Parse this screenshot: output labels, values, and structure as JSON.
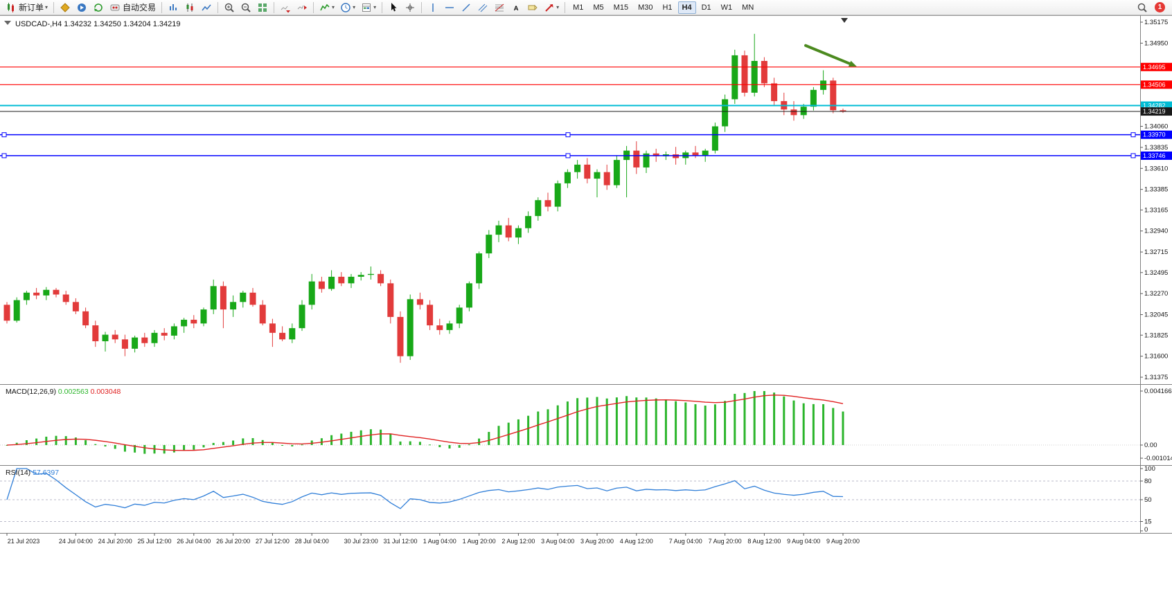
{
  "toolbar": {
    "items": [
      {
        "type": "button",
        "name": "new-order-button",
        "icon": "new-order-icon",
        "label": "新订单",
        "caret": true
      },
      {
        "type": "sep"
      },
      {
        "type": "button",
        "name": "metaeditor-button",
        "icon": "metaeditor-icon"
      },
      {
        "type": "button",
        "name": "community-button",
        "icon": "community-icon"
      },
      {
        "type": "button",
        "name": "refresh-button",
        "icon": "refresh-icon"
      },
      {
        "type": "button",
        "name": "algo-trading-button",
        "icon": "algo-trading-icon",
        "label": "自动交易"
      },
      {
        "type": "sep"
      },
      {
        "type": "button",
        "name": "bar-chart-button",
        "icon": "bar-chart-icon"
      },
      {
        "type": "button",
        "name": "candlestick-chart-button",
        "icon": "candlestick-chart-icon"
      },
      {
        "type": "button",
        "name": "line-chart-button",
        "icon": "line-chart-icon"
      },
      {
        "type": "sep"
      },
      {
        "type": "button",
        "name": "zoom-in-button",
        "icon": "zoom-in-icon"
      },
      {
        "type": "button",
        "name": "zoom-out-button",
        "icon": "zoom-out-icon"
      },
      {
        "type": "button",
        "name": "tile-windows-button",
        "icon": "tile-windows-icon"
      },
      {
        "type": "sep"
      },
      {
        "type": "button",
        "name": "auto-scroll-button",
        "icon": "auto-scroll-icon"
      },
      {
        "type": "button",
        "name": "chart-shift-button",
        "icon": "chart-shift-icon"
      },
      {
        "type": "sep"
      },
      {
        "type": "button",
        "name": "indicators-button",
        "icon": "indicators-icon",
        "caret": true
      },
      {
        "type": "button",
        "name": "timeframes-menu-button",
        "icon": "clock-icon",
        "caret": true
      },
      {
        "type": "button",
        "name": "templates-button",
        "icon": "template-icon",
        "caret": true
      },
      {
        "type": "sep"
      },
      {
        "type": "button",
        "name": "cursor-button",
        "icon": "cursor-icon"
      },
      {
        "type": "button",
        "name": "crosshair-button",
        "icon": "crosshair-icon"
      },
      {
        "type": "sep"
      },
      {
        "type": "button",
        "name": "vertical-line-button",
        "icon": "vertical-line-icon"
      },
      {
        "type": "button",
        "name": "horizontal-line-button",
        "icon": "horizontal-line-icon"
      },
      {
        "type": "button",
        "name": "trendline-button",
        "icon": "trendline-icon"
      },
      {
        "type": "button",
        "name": "channel-button",
        "icon": "channel-icon"
      },
      {
        "type": "button",
        "name": "fibonacci-button",
        "icon": "fibonacci-icon"
      },
      {
        "type": "button",
        "name": "text-button",
        "icon": "text-icon"
      },
      {
        "type": "button",
        "name": "label-button",
        "icon": "label-icon"
      },
      {
        "type": "button",
        "name": "shapes-button",
        "icon": "shapes-icon",
        "caret": true
      }
    ],
    "timeframes": [
      "M1",
      "M5",
      "M15",
      "M30",
      "H1",
      "H4",
      "D1",
      "W1",
      "MN"
    ],
    "active_timeframe": "H4",
    "notification_count": "1"
  },
  "chart": {
    "title_symbol": "USDCAD-,H4",
    "title_ohlc": "1.34232 1.34250 1.34204 1.34219"
  },
  "chart_data": {
    "type": "candlestick",
    "symbol": "USDCAD-",
    "timeframe": "H4",
    "current_bar": {
      "open": "1.34232",
      "high": "1.34250",
      "low": "1.34204",
      "close": "1.34219"
    },
    "colors": {
      "up": "#18a818",
      "down": "#e23b3b",
      "wick_up": "#18a818",
      "wick_down": "#e23b3b",
      "macd_hist": "#2bb52b",
      "macd_signal": "#e02020",
      "rsi_line": "#2f7ed8",
      "resistance": "#ff0000",
      "support": "#0000ff",
      "level": "#00bcd4",
      "bid": "#1a1a1a",
      "arrow": "#4c8a1f"
    },
    "price_axis": {
      "top": 1.35175,
      "bottom": 1.31375,
      "labels": [
        "1.35175",
        "1.34950",
        "1.34060",
        "1.33835",
        "1.33610",
        "1.33385",
        "1.33165",
        "1.32940",
        "1.32715",
        "1.32495",
        "1.32270",
        "1.32045",
        "1.31825",
        "1.31600",
        "1.31375"
      ]
    },
    "horizontal_lines": [
      {
        "price": 1.34695,
        "label": "1.34695",
        "role": "resistance",
        "handles": false
      },
      {
        "price": 1.34506,
        "label": "1.34506",
        "role": "resistance",
        "handles": false
      },
      {
        "price": 1.34282,
        "label": "1.34282",
        "role": "level",
        "handles": false
      },
      {
        "price": 1.3397,
        "label": "1.33970",
        "role": "support",
        "handles": true
      },
      {
        "price": 1.33746,
        "label": "1.33746",
        "role": "support",
        "handles": true
      }
    ],
    "bid_line": {
      "price": 1.34219,
      "label": "1.34219"
    },
    "arrow_annotation": {
      "from_bar": 81.2,
      "from_price": 1.34925,
      "to_bar": 86.4,
      "to_price": 1.347
    },
    "candles": [
      [
        1.3215,
        1.3218,
        1.3195,
        1.3198
      ],
      [
        1.3198,
        1.3223,
        1.3196,
        1.322
      ],
      [
        1.322,
        1.323,
        1.3215,
        1.3228
      ],
      [
        1.3228,
        1.3233,
        1.3221,
        1.3225
      ],
      [
        1.3225,
        1.3234,
        1.322,
        1.3231
      ],
      [
        1.3231,
        1.3233,
        1.3223,
        1.3226
      ],
      [
        1.3226,
        1.323,
        1.3215,
        1.3218
      ],
      [
        1.3218,
        1.3222,
        1.3205,
        1.3208
      ],
      [
        1.3208,
        1.3212,
        1.319,
        1.3193
      ],
      [
        1.3193,
        1.3198,
        1.317,
        1.3176
      ],
      [
        1.3176,
        1.3186,
        1.3165,
        1.3183
      ],
      [
        1.3183,
        1.3188,
        1.3174,
        1.3178
      ],
      [
        1.3178,
        1.3183,
        1.316,
        1.3168
      ],
      [
        1.3168,
        1.3182,
        1.3164,
        1.318
      ],
      [
        1.318,
        1.3185,
        1.317,
        1.3174
      ],
      [
        1.3174,
        1.3188,
        1.317,
        1.3185
      ],
      [
        1.3185,
        1.319,
        1.3177,
        1.3182
      ],
      [
        1.3182,
        1.3195,
        1.3178,
        1.3192
      ],
      [
        1.3192,
        1.3201,
        1.3185,
        1.3199
      ],
      [
        1.3199,
        1.3204,
        1.319,
        1.3195
      ],
      [
        1.3195,
        1.3212,
        1.3192,
        1.321
      ],
      [
        1.321,
        1.3242,
        1.3205,
        1.3235
      ],
      [
        1.3235,
        1.324,
        1.319,
        1.321
      ],
      [
        1.321,
        1.3225,
        1.3202,
        1.3218
      ],
      [
        1.3218,
        1.323,
        1.3212,
        1.3228
      ],
      [
        1.3228,
        1.3233,
        1.3213,
        1.3215
      ],
      [
        1.3215,
        1.322,
        1.3193,
        1.3195
      ],
      [
        1.3195,
        1.32,
        1.317,
        1.3185
      ],
      [
        1.3185,
        1.3192,
        1.3176,
        1.3178
      ],
      [
        1.3178,
        1.3195,
        1.3174,
        1.319
      ],
      [
        1.319,
        1.322,
        1.3187,
        1.3215
      ],
      [
        1.3215,
        1.3248,
        1.321,
        1.324
      ],
      [
        1.324,
        1.3245,
        1.3228,
        1.3232
      ],
      [
        1.3232,
        1.3252,
        1.323,
        1.3245
      ],
      [
        1.3245,
        1.325,
        1.3235,
        1.3238
      ],
      [
        1.3238,
        1.3248,
        1.3233,
        1.3245
      ],
      [
        1.3245,
        1.325,
        1.3241,
        1.3247
      ],
      [
        1.3247,
        1.3256,
        1.3242,
        1.3248
      ],
      [
        1.3248,
        1.3252,
        1.3235,
        1.3238
      ],
      [
        1.3238,
        1.3242,
        1.3195,
        1.3202
      ],
      [
        1.3202,
        1.3208,
        1.3153,
        1.316
      ],
      [
        1.316,
        1.3226,
        1.3156,
        1.3221
      ],
      [
        1.3221,
        1.3228,
        1.321,
        1.3215
      ],
      [
        1.3215,
        1.322,
        1.3188,
        1.3193
      ],
      [
        1.3193,
        1.32,
        1.3183,
        1.3188
      ],
      [
        1.3188,
        1.3198,
        1.3184,
        1.3195
      ],
      [
        1.3195,
        1.3215,
        1.319,
        1.3212
      ],
      [
        1.3212,
        1.324,
        1.3208,
        1.3238
      ],
      [
        1.3238,
        1.3272,
        1.3232,
        1.327
      ],
      [
        1.327,
        1.3295,
        1.3265,
        1.329
      ],
      [
        1.329,
        1.3305,
        1.3282,
        1.33
      ],
      [
        1.33,
        1.3308,
        1.3283,
        1.3287
      ],
      [
        1.3287,
        1.33,
        1.328,
        1.3297
      ],
      [
        1.3297,
        1.3315,
        1.3292,
        1.331
      ],
      [
        1.331,
        1.333,
        1.3305,
        1.3327
      ],
      [
        1.3327,
        1.3335,
        1.3315,
        1.332
      ],
      [
        1.332,
        1.3348,
        1.3315,
        1.3345
      ],
      [
        1.3345,
        1.336,
        1.334,
        1.3357
      ],
      [
        1.3357,
        1.337,
        1.335,
        1.3365
      ],
      [
        1.3365,
        1.3372,
        1.3345,
        1.335
      ],
      [
        1.335,
        1.336,
        1.333,
        1.3357
      ],
      [
        1.3357,
        1.3365,
        1.3338,
        1.3343
      ],
      [
        1.3343,
        1.3375,
        1.334,
        1.337
      ],
      [
        1.337,
        1.3385,
        1.333,
        1.338
      ],
      [
        1.338,
        1.339,
        1.3355,
        1.3362
      ],
      [
        1.3362,
        1.338,
        1.3356,
        1.3377
      ],
      [
        1.3377,
        1.3382,
        1.3368,
        1.3374
      ],
      [
        1.3374,
        1.3379,
        1.337,
        1.3376
      ],
      [
        1.3376,
        1.3384,
        1.3365,
        1.3372
      ],
      [
        1.3372,
        1.338,
        1.3365,
        1.3378
      ],
      [
        1.3378,
        1.3385,
        1.3372,
        1.3375
      ],
      [
        1.3375,
        1.3382,
        1.3368,
        1.338
      ],
      [
        1.338,
        1.341,
        1.3377,
        1.3406
      ],
      [
        1.3406,
        1.344,
        1.34,
        1.3435
      ],
      [
        1.3435,
        1.3488,
        1.343,
        1.3482
      ],
      [
        1.3482,
        1.3487,
        1.3438,
        1.3442
      ],
      [
        1.3442,
        1.3505,
        1.3438,
        1.3476
      ],
      [
        1.3476,
        1.348,
        1.3448,
        1.3452
      ],
      [
        1.3452,
        1.3458,
        1.3428,
        1.3433
      ],
      [
        1.3433,
        1.3442,
        1.3418,
        1.3424
      ],
      [
        1.3424,
        1.3433,
        1.3412,
        1.3418
      ],
      [
        1.3418,
        1.343,
        1.3414,
        1.3427
      ],
      [
        1.3427,
        1.3448,
        1.3423,
        1.3445
      ],
      [
        1.3445,
        1.3466,
        1.344,
        1.3455
      ],
      [
        1.3455,
        1.3458,
        1.342,
        1.34232
      ],
      [
        1.34232,
        1.3425,
        1.34204,
        1.34219
      ]
    ],
    "time_labels": [
      {
        "i": 0,
        "t": "21 Jul 2023"
      },
      {
        "i": 7,
        "t": "24 Jul 04:00"
      },
      {
        "i": 11,
        "t": "24 Jul 20:00"
      },
      {
        "i": 15,
        "t": "25 Jul 12:00"
      },
      {
        "i": 19,
        "t": "26 Jul 04:00"
      },
      {
        "i": 23,
        "t": "26 Jul 20:00"
      },
      {
        "i": 27,
        "t": "27 Jul 12:00"
      },
      {
        "i": 31,
        "t": "28 Jul 04:00"
      },
      {
        "i": 36,
        "t": "30 Jul 23:00"
      },
      {
        "i": 40,
        "t": "31 Jul 12:00"
      },
      {
        "i": 44,
        "t": "1 Aug 04:00"
      },
      {
        "i": 48,
        "t": "1 Aug 20:00"
      },
      {
        "i": 52,
        "t": "2 Aug 12:00"
      },
      {
        "i": 56,
        "t": "3 Aug 04:00"
      },
      {
        "i": 60,
        "t": "3 Aug 20:00"
      },
      {
        "i": 64,
        "t": "4 Aug 12:00"
      },
      {
        "i": 69,
        "t": "7 Aug 04:00"
      },
      {
        "i": 73,
        "t": "7 Aug 20:00"
      },
      {
        "i": 77,
        "t": "8 Aug 12:00"
      },
      {
        "i": 81,
        "t": "9 Aug 04:00"
      },
      {
        "i": 85,
        "t": "9 Aug 20:00"
      }
    ],
    "indicators": {
      "macd": {
        "name": "MACD(12,26,9)",
        "value_main": "0.002563",
        "value_signal": "0.003048",
        "params": [
          12,
          26,
          9
        ],
        "axis_labels": [
          "0.004166",
          "0.00",
          "-0.001014"
        ],
        "range": {
          "max": 0.004166,
          "min": -0.001014
        }
      },
      "rsi": {
        "name": "RSI(14)",
        "value": "57.6397",
        "period": 14,
        "axis_labels": [
          "100",
          "80",
          "50",
          "15",
          "0"
        ],
        "levels": [
          80,
          50,
          15
        ]
      }
    }
  }
}
